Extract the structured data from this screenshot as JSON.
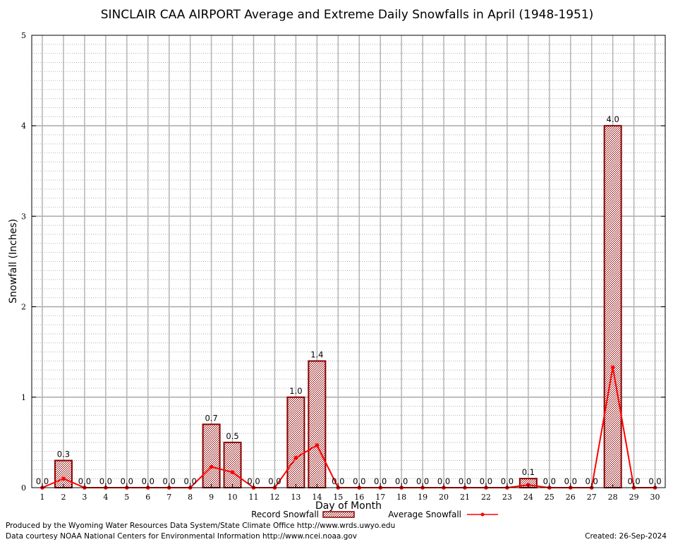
{
  "chart_data": {
    "type": "bar",
    "title": "SINCLAIR CAA AIRPORT Average and Extreme Daily Snowfalls in April (1948-1951)",
    "xlabel": "Day of Month",
    "ylabel": "Snowfall (Inches)",
    "ylim": [
      0,
      5
    ],
    "yticks": [
      "0",
      "1",
      "2",
      "3",
      "4",
      "5"
    ],
    "categories": [
      "1",
      "2",
      "3",
      "4",
      "5",
      "6",
      "7",
      "8",
      "9",
      "10",
      "11",
      "12",
      "13",
      "14",
      "15",
      "16",
      "17",
      "18",
      "19",
      "20",
      "21",
      "22",
      "23",
      "24",
      "25",
      "26",
      "27",
      "28",
      "29",
      "30"
    ],
    "grid": true,
    "legend_position": "bottom",
    "series": [
      {
        "name": "Record Snowfall",
        "kind": "bar",
        "color": "#8b0000",
        "values": [
          0.0,
          0.3,
          0.0,
          0.0,
          0.0,
          0.0,
          0.0,
          0.0,
          0.7,
          0.5,
          0.0,
          0.0,
          1.0,
          1.4,
          0.0,
          0.0,
          0.0,
          0.0,
          0.0,
          0.0,
          0.0,
          0.0,
          0.0,
          0.1,
          0.0,
          0.0,
          0.0,
          4.0,
          0.0,
          0.0
        ],
        "labels": [
          "0.0",
          "0.3",
          "0.0",
          "0.0",
          "0.0",
          "0.0",
          "0.0",
          "0.0",
          "0.7",
          "0.5",
          "0.0",
          "0.0",
          "1.0",
          "1.4",
          "0.0",
          "0.0",
          "0.0",
          "0.0",
          "0.0",
          "0.0",
          "0.0",
          "0.0",
          "0.0",
          "0.1",
          "0.0",
          "0.0",
          "0.0",
          "4.0",
          "0.0",
          "0.0"
        ]
      },
      {
        "name": "Average Snowfall",
        "kind": "line",
        "color": "#ff0000",
        "values": [
          0.0,
          0.1,
          0.0,
          0.0,
          0.0,
          0.0,
          0.0,
          0.0,
          0.23,
          0.17,
          0.0,
          0.0,
          0.33,
          0.47,
          0.0,
          0.0,
          0.0,
          0.0,
          0.0,
          0.0,
          0.0,
          0.0,
          0.0,
          0.03,
          0.0,
          0.0,
          0.0,
          1.33,
          0.0,
          0.0
        ]
      }
    ]
  },
  "footer": {
    "produced_by": "Produced by the Wyoming Water Resources Data System/State Climate Office http://www.wrds.uwyo.edu",
    "courtesy": "Data courtesy NOAA National Centers for Environmental Information http://www.ncei.noaa.gov",
    "created": "Created: 26-Sep-2024"
  }
}
